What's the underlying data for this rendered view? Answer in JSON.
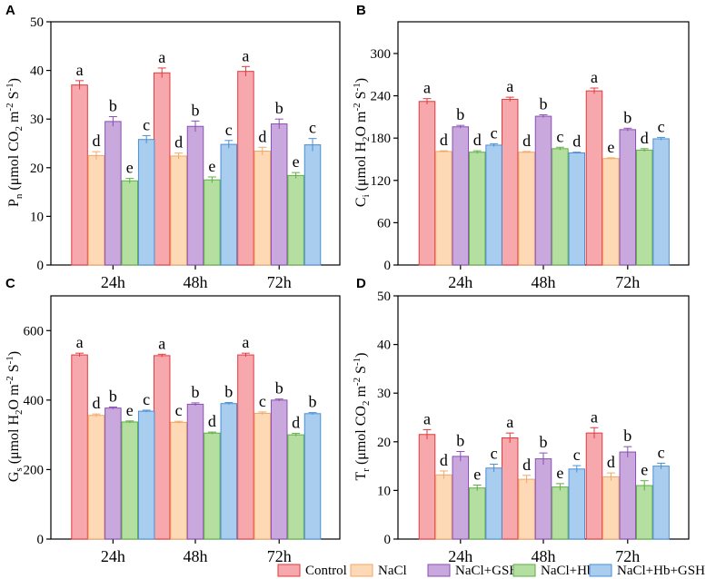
{
  "chart_data": {
    "type": "bar",
    "categories": [
      "24h",
      "48h",
      "72h"
    ],
    "legend": [
      {
        "name": "Control",
        "color": "#f7a8ac",
        "edge": "#e03a3e"
      },
      {
        "name": "NaCl",
        "color": "#fdd9b5",
        "edge": "#f0a868"
      },
      {
        "name": "NaCl+GSH",
        "color": "#c9a9dd",
        "edge": "#8a4fb3"
      },
      {
        "name": "NaCl+Hb",
        "color": "#b5dfa0",
        "edge": "#5fae45"
      },
      {
        "name": "NaCl+Hb+GSH",
        "color": "#a9cdef",
        "edge": "#4a8fd4"
      }
    ],
    "panels": [
      {
        "tag": "A",
        "ylabel": "Pn (μmol CO2 m-2 S-1)",
        "ylim": [
          0,
          50
        ],
        "yticks": [
          0,
          10,
          20,
          30,
          40,
          50
        ],
        "series": [
          {
            "name": "Control",
            "values": [
              37.0,
              39.5,
              39.8
            ],
            "errors": [
              0.9,
              1.0,
              1.0
            ],
            "letters": [
              "a",
              "a",
              "a"
            ]
          },
          {
            "name": "NaCl",
            "values": [
              22.5,
              22.4,
              23.4
            ],
            "errors": [
              0.8,
              0.6,
              0.8
            ],
            "letters": [
              "d",
              "d",
              "d"
            ]
          },
          {
            "name": "NaCl+GSH",
            "values": [
              29.5,
              28.5,
              29.0
            ],
            "errors": [
              1.0,
              1.1,
              1.0
            ],
            "letters": [
              "b",
              "b",
              "b"
            ]
          },
          {
            "name": "NaCl+Hb",
            "values": [
              17.3,
              17.5,
              18.4
            ],
            "errors": [
              0.5,
              0.6,
              0.6
            ],
            "letters": [
              "e",
              "e",
              "e"
            ]
          },
          {
            "name": "NaCl+Hb+GSH",
            "values": [
              25.8,
              24.8,
              24.7
            ],
            "errors": [
              0.8,
              0.8,
              1.3
            ],
            "letters": [
              "c",
              "c",
              "c"
            ]
          }
        ]
      },
      {
        "tag": "B",
        "ylabel": "Ci (μmol H2O m-2 S-1)",
        "ylim": [
          0,
          345
        ],
        "yticks": [
          0,
          60,
          120,
          180,
          240,
          300
        ],
        "series": [
          {
            "name": "Control",
            "values": [
              232,
              235,
              247
            ],
            "errors": [
              4,
              3,
              4
            ],
            "letters": [
              "a",
              "a",
              "a"
            ]
          },
          {
            "name": "NaCl",
            "values": [
              161,
              160,
              151
            ],
            "errors": [
              1,
              1,
              1
            ],
            "letters": [
              "d",
              "d",
              "e"
            ]
          },
          {
            "name": "NaCl+GSH",
            "values": [
              196,
              211,
              192
            ],
            "errors": [
              2,
              2,
              2
            ],
            "letters": [
              "b",
              "b",
              "b"
            ]
          },
          {
            "name": "NaCl+Hb",
            "values": [
              160,
              165,
              163
            ],
            "errors": [
              2,
              2,
              2
            ],
            "letters": [
              "d",
              "c",
              "d"
            ]
          },
          {
            "name": "NaCl+Hb+GSH",
            "values": [
              170,
              159,
              179
            ],
            "errors": [
              2,
              1,
              2
            ],
            "letters": [
              "c",
              "d",
              "c"
            ]
          }
        ]
      },
      {
        "tag": "C",
        "ylabel": "Gs (μmol H2O m-2 S-1)",
        "ylim": [
          0,
          700
        ],
        "yticks": [
          0,
          200,
          400,
          600
        ],
        "series": [
          {
            "name": "Control",
            "values": [
              530,
              528,
              530
            ],
            "errors": [
              5,
              4,
              5
            ],
            "letters": [
              "a",
              "a",
              "a"
            ]
          },
          {
            "name": "NaCl",
            "values": [
              356,
              336,
              362
            ],
            "errors": [
              4,
              3,
              4
            ],
            "letters": [
              "d",
              "c",
              "c"
            ]
          },
          {
            "name": "NaCl+GSH",
            "values": [
              377,
              388,
              400
            ],
            "errors": [
              3,
              4,
              3
            ],
            "letters": [
              "b",
              "b",
              "b"
            ]
          },
          {
            "name": "NaCl+Hb",
            "values": [
              337,
              305,
              300
            ],
            "errors": [
              3,
              3,
              4
            ],
            "letters": [
              "e",
              "d",
              "d"
            ]
          },
          {
            "name": "NaCl+Hb+GSH",
            "values": [
              368,
              390,
              361
            ],
            "errors": [
              3,
              3,
              3
            ],
            "letters": [
              "c",
              "b",
              "b"
            ]
          }
        ]
      },
      {
        "tag": "D",
        "ylabel": "Tr (μmol CO2 m-2 S-1)",
        "ylim": [
          0,
          50
        ],
        "yticks": [
          0,
          10,
          20,
          30,
          40,
          50
        ],
        "series": [
          {
            "name": "Control",
            "values": [
              21.5,
              20.8,
              21.8
            ],
            "errors": [
              1.0,
              1.0,
              1.1
            ],
            "letters": [
              "a",
              "a",
              "a"
            ]
          },
          {
            "name": "NaCl",
            "values": [
              13.2,
              12.3,
              12.8
            ],
            "errors": [
              0.8,
              0.8,
              0.8
            ],
            "letters": [
              "d",
              "d",
              "d"
            ]
          },
          {
            "name": "NaCl+GSH",
            "values": [
              17.0,
              16.5,
              17.9
            ],
            "errors": [
              1.0,
              1.2,
              1.1
            ],
            "letters": [
              "b",
              "b",
              "b"
            ]
          },
          {
            "name": "NaCl+Hb",
            "values": [
              10.5,
              10.7,
              11.0
            ],
            "errors": [
              0.6,
              0.7,
              1.0
            ],
            "letters": [
              "e",
              "e",
              "e"
            ]
          },
          {
            "name": "NaCl+Hb+GSH",
            "values": [
              14.6,
              14.4,
              15.0
            ],
            "errors": [
              0.8,
              0.7,
              0.6
            ],
            "letters": [
              "c",
              "c",
              "c"
            ]
          }
        ]
      }
    ]
  }
}
